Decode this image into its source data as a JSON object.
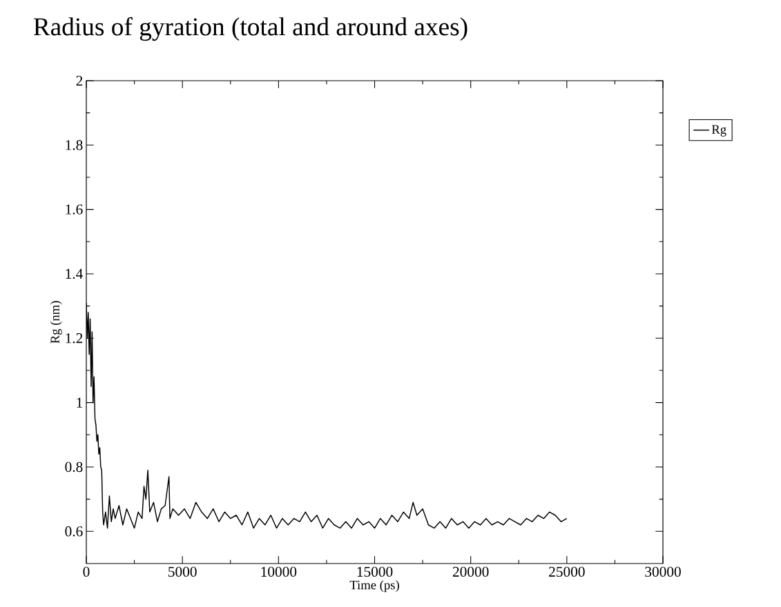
{
  "chart_data": {
    "type": "line",
    "title": "Radius of gyration (total and around axes)",
    "xlabel": "Time (ps)",
    "ylabel": "Rg (nm)",
    "xlim": [
      0,
      30000
    ],
    "ylim": [
      0.5,
      2
    ],
    "xticks": [
      0,
      5000,
      10000,
      15000,
      20000,
      25000,
      30000
    ],
    "yticks": [
      {
        "value": 0.6,
        "label": "0.6"
      },
      {
        "value": 0.8,
        "label": "0.8"
      },
      1,
      {
        "value": 1.2,
        "label": "1.2"
      },
      {
        "value": 1.4,
        "label": "1.4"
      },
      {
        "value": 1.6,
        "label": "1.6"
      },
      {
        "value": 1.8,
        "label": "1.8"
      },
      2
    ],
    "legend": "top right",
    "grid": false,
    "marker": "none",
    "line_style": "solid",
    "series": [
      {
        "name": "Rg",
        "color": "#000000",
        "x": [
          0,
          50,
          100,
          150,
          200,
          250,
          300,
          350,
          400,
          450,
          500,
          550,
          600,
          650,
          700,
          750,
          800,
          850,
          900,
          1000,
          1100,
          1200,
          1300,
          1400,
          1500,
          1700,
          1900,
          2100,
          2300,
          2500,
          2700,
          2900,
          3000,
          3100,
          3200,
          3300,
          3500,
          3700,
          3900,
          4100,
          4300,
          4350,
          4500,
          4800,
          5100,
          5400,
          5700,
          6000,
          6300,
          6600,
          6900,
          7200,
          7500,
          7800,
          8100,
          8400,
          8700,
          9000,
          9300,
          9600,
          9900,
          10200,
          10500,
          10800,
          11100,
          11400,
          11700,
          12000,
          12300,
          12600,
          12900,
          13200,
          13500,
          13800,
          14100,
          14400,
          14700,
          15000,
          15300,
          15600,
          15900,
          16200,
          16500,
          16800,
          17000,
          17200,
          17500,
          17800,
          18100,
          18400,
          18700,
          19000,
          19300,
          19600,
          19900,
          20200,
          20500,
          20800,
          21100,
          21400,
          21700,
          22000,
          22300,
          22600,
          22900,
          23200,
          23500,
          23800,
          24100,
          24400,
          24700,
          25000
        ],
        "values": [
          1.31,
          1.2,
          1.28,
          1.15,
          1.26,
          1.05,
          1.22,
          1.0,
          1.08,
          0.95,
          0.93,
          0.88,
          0.9,
          0.84,
          0.86,
          0.8,
          0.79,
          0.66,
          0.62,
          0.66,
          0.61,
          0.71,
          0.63,
          0.67,
          0.64,
          0.68,
          0.62,
          0.67,
          0.64,
          0.61,
          0.66,
          0.64,
          0.74,
          0.7,
          0.79,
          0.66,
          0.69,
          0.63,
          0.67,
          0.68,
          0.77,
          0.64,
          0.67,
          0.65,
          0.67,
          0.64,
          0.69,
          0.66,
          0.64,
          0.67,
          0.63,
          0.66,
          0.64,
          0.65,
          0.62,
          0.66,
          0.61,
          0.64,
          0.62,
          0.65,
          0.61,
          0.64,
          0.62,
          0.64,
          0.63,
          0.66,
          0.63,
          0.65,
          0.61,
          0.64,
          0.62,
          0.61,
          0.63,
          0.61,
          0.64,
          0.62,
          0.63,
          0.61,
          0.64,
          0.62,
          0.65,
          0.63,
          0.66,
          0.64,
          0.69,
          0.65,
          0.67,
          0.62,
          0.61,
          0.63,
          0.61,
          0.64,
          0.62,
          0.63,
          0.61,
          0.63,
          0.62,
          0.64,
          0.62,
          0.63,
          0.62,
          0.64,
          0.63,
          0.62,
          0.64,
          0.63,
          0.65,
          0.64,
          0.66,
          0.65,
          0.63,
          0.64
        ]
      }
    ]
  }
}
